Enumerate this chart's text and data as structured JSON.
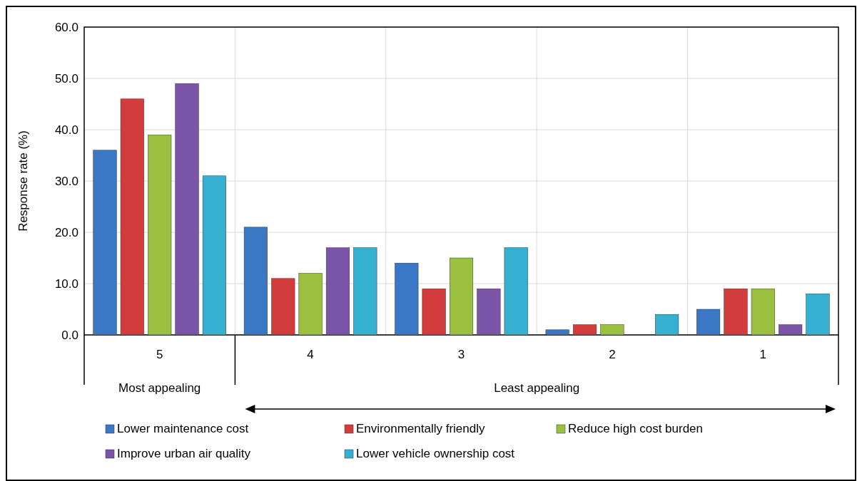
{
  "chart_data": {
    "type": "bar",
    "ylabel": "Response rate (%)",
    "categories": [
      "5",
      "4",
      "3",
      "2",
      "1"
    ],
    "series": [
      {
        "name": "Lower maintenance cost",
        "color": "#3a78c6",
        "values": [
          36,
          21,
          14,
          1,
          5
        ]
      },
      {
        "name": "Environmentally friendly",
        "color": "#d23c3c",
        "values": [
          46,
          11,
          9,
          2,
          9
        ]
      },
      {
        "name": "Reduce high cost burden",
        "color": "#9bc040",
        "values": [
          39,
          12,
          15,
          2,
          9
        ]
      },
      {
        "name": "Improve urban air quality",
        "color": "#7b55a8",
        "values": [
          49,
          17,
          9,
          0,
          2
        ]
      },
      {
        "name": "Lower vehicle ownership cost",
        "color": "#35b0d0",
        "values": [
          31,
          17,
          17,
          4,
          8
        ]
      }
    ],
    "ylim": [
      0,
      60
    ],
    "yticks": [
      {
        "value": 0,
        "label": "0.0"
      },
      {
        "value": 10,
        "label": "10.0"
      },
      {
        "value": 20,
        "label": "20.0"
      },
      {
        "value": 30,
        "label": "30.0"
      },
      {
        "value": 40,
        "label": "40.0"
      },
      {
        "value": 50,
        "label": "50.0"
      },
      {
        "value": 60,
        "label": "60.0"
      }
    ],
    "grid": true,
    "legend": "bottom",
    "annotations": [
      "Most appealing",
      "Least appealing"
    ]
  }
}
